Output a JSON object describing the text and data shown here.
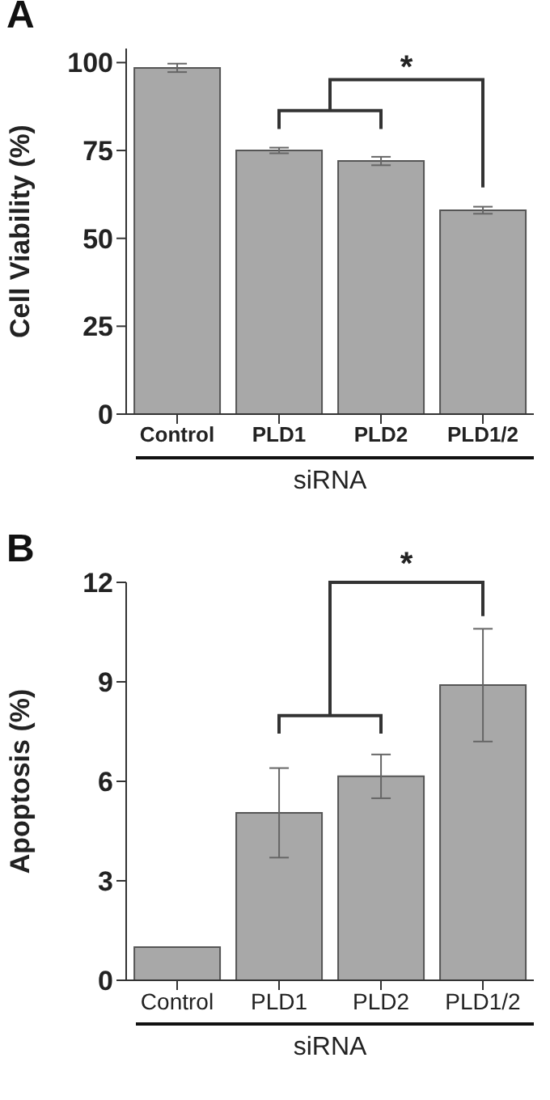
{
  "chart_data": [
    {
      "type": "bar",
      "title": "A",
      "ylabel": "Cell Viability (%)",
      "xlabel": "siRNA",
      "categories": [
        "Control",
        "PLD1",
        "PLD2",
        "PLD1/2"
      ],
      "values": [
        98.5,
        75,
        72,
        58
      ],
      "errors": [
        1.2,
        0.8,
        1.2,
        1.0
      ],
      "color": "#a8a8a8",
      "ylim": [
        0,
        104
      ],
      "yticks": [
        0,
        25,
        50,
        75,
        100
      ],
      "annotations": [
        "*"
      ]
    },
    {
      "type": "bar",
      "title": "B",
      "ylabel": "Apoptosis (%)",
      "xlabel": "siRNA",
      "categories": [
        "Control",
        "PLD1",
        "PLD2",
        "PLD1/2"
      ],
      "values": [
        1.0,
        5.05,
        6.15,
        8.9
      ],
      "errors": [
        null,
        1.35,
        0.66,
        1.7
      ],
      "color": "#a8a8a8",
      "ylim": [
        0,
        12
      ],
      "yticks": [
        0,
        3,
        6,
        9,
        12
      ],
      "annotations": [
        "*"
      ]
    }
  ]
}
